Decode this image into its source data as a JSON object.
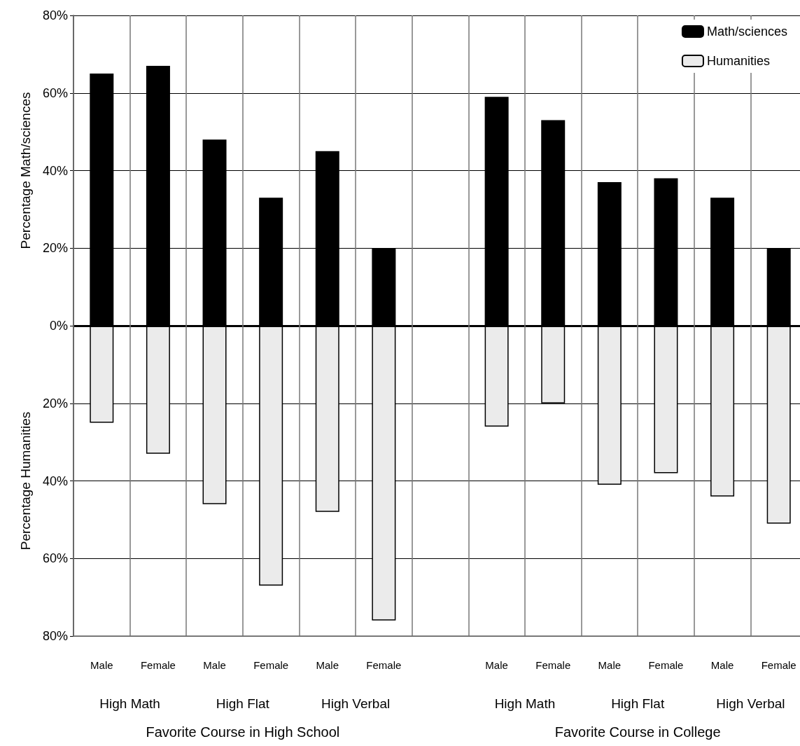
{
  "chart_data": {
    "type": "bar",
    "ylabel": "Percentage Math/sciences",
    "categories": [
      "Male",
      "Female",
      "Male",
      "Female",
      "Male",
      "Female",
      null,
      "Male",
      "Female",
      "Male",
      "Female",
      "Male",
      "Female"
    ],
    "series": [
      {
        "name": "Math/sciences",
        "color": "#000000",
        "values": [
          65,
          67,
          48,
          33,
          45,
          20,
          null,
          59,
          53,
          37,
          38,
          33,
          20
        ]
      },
      {
        "name": "Humanities",
        "color": "#ebebeb",
        "values": [
          -25,
          -33,
          -46,
          -67,
          -48,
          -76,
          null,
          -26,
          -20,
          -41,
          -38,
          -44,
          -51
        ]
      }
    ],
    "ylim": [
      -80,
      80
    ],
    "yticks": [
      {
        "value": -80,
        "label": "80%"
      },
      {
        "value": -60,
        "label": "60%"
      },
      {
        "value": -40,
        "label": "40%"
      },
      {
        "value": -20,
        "label": "20%"
      },
      {
        "value": 0,
        "label": "0%"
      },
      {
        "value": 20,
        "label": "20%"
      },
      {
        "value": 40,
        "label": "40%"
      },
      {
        "value": 60,
        "label": "60%"
      },
      {
        "value": 80,
        "label": "80%"
      }
    ],
    "annotations": [
      "High Math",
      "High Flat",
      "High Verbal",
      "High Math",
      "High Flat",
      "High Verbal",
      "Favorite Course in High School",
      "Favorite Course in College",
      "Percentage Humanities"
    ],
    "stacked": true,
    "ref_lines": [
      {
        "axis": "y",
        "value": 0,
        "color": "#000000"
      }
    ],
    "grid": true,
    "legend": "top right"
  }
}
